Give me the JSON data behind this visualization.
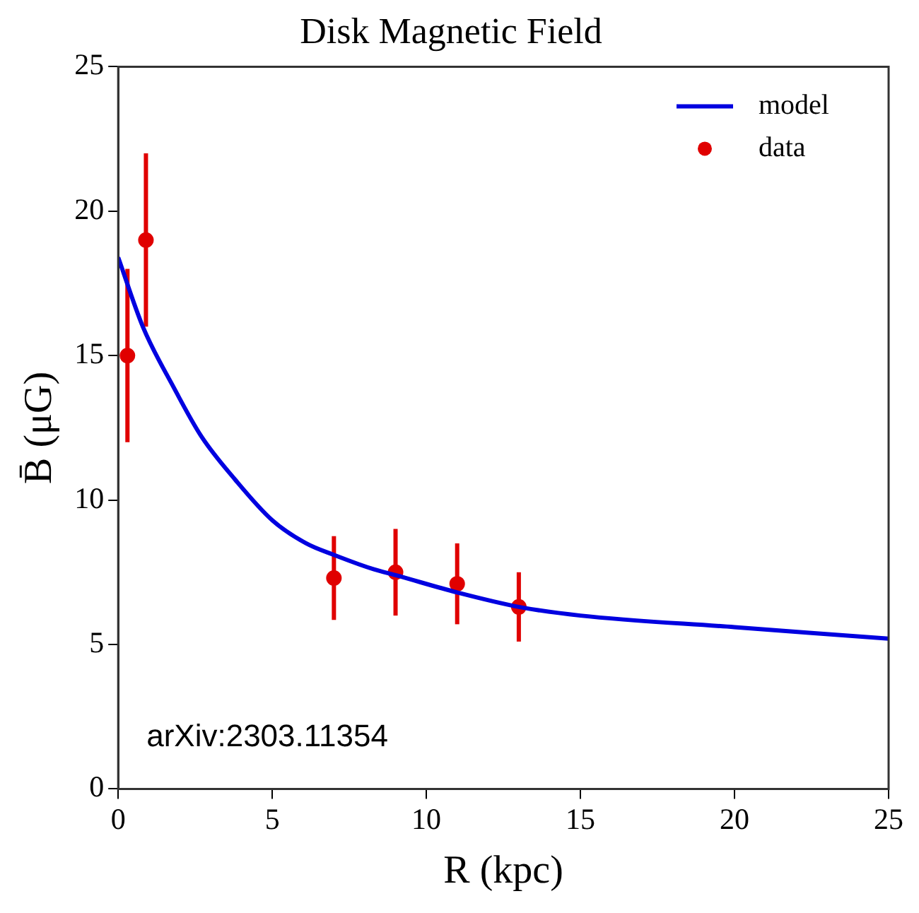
{
  "chart_data": {
    "type": "scatter",
    "title": "Disk Magnetic Field",
    "xlabel": "R (kpc)",
    "ylabel": "B̄ (μG)",
    "annotations": [
      "arXiv:2303.11354"
    ],
    "xlim": [
      0,
      25
    ],
    "xticks": [
      0,
      5,
      10,
      15,
      20,
      25
    ],
    "ylim": [
      0,
      25
    ],
    "yticks": [
      0,
      5,
      10,
      15,
      20,
      25
    ],
    "grid": false,
    "legend": "top right",
    "marker": "circle",
    "series": [
      {
        "name": "model",
        "type": "line",
        "color": "#0000e0",
        "marker": "none",
        "x": [
          0,
          0.8,
          1.8,
          2.7,
          3.8,
          5,
          6.1,
          7,
          8.3,
          9,
          11,
          13,
          15,
          20,
          25
        ],
        "values": [
          18.4,
          16.0,
          13.9,
          12.2,
          10.7,
          9.3,
          8.5,
          8.1,
          7.6,
          7.4,
          6.8,
          6.3,
          6.0,
          5.6,
          5.2
        ]
      },
      {
        "name": "data",
        "type": "scatter",
        "color": "#e00000",
        "x": [
          0.3,
          0.9,
          7,
          9,
          11,
          13
        ],
        "values": [
          15,
          19,
          7.3,
          7.5,
          7.1,
          6.3
        ],
        "errors": [
          3,
          3,
          1.45,
          1.5,
          1.4,
          1.2
        ]
      }
    ]
  }
}
